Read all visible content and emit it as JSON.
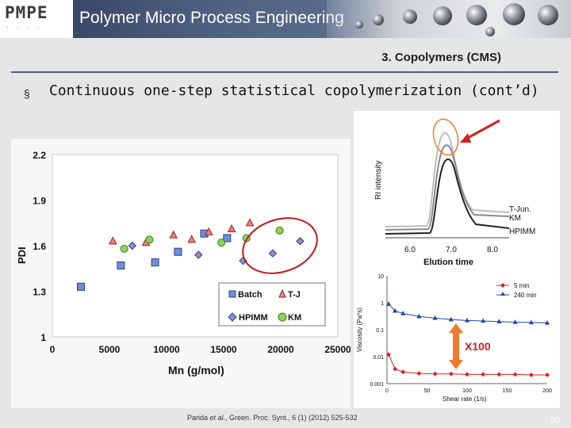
{
  "header": {
    "logo": "PMPE",
    "logo_sub": "· · · ·",
    "title": "Polymer Micro Process Engineering"
  },
  "section_title": "3. Copolymers (CMS)",
  "bullet": "§",
  "headline": "Continuous one-step statistical copolymerization (cont’d)",
  "main_plot": {
    "ylabel": "PDI",
    "xlabel": "Mn (g/mol)",
    "yticks": [
      "2.2",
      "1.9",
      "1.6",
      "1.3",
      "1"
    ],
    "xticks": [
      "0",
      "5000",
      "10000",
      "15000",
      "20000",
      "25000"
    ],
    "legend": [
      "Batch",
      "T-J",
      "HPIMM",
      "KM"
    ]
  },
  "chart_data": [
    {
      "type": "scatter",
      "title": "",
      "xlabel": "Mn (g/mol)",
      "ylabel": "PDI",
      "xlim": [
        0,
        25000
      ],
      "ylim": [
        1,
        2.2
      ],
      "series": [
        {
          "name": "Batch",
          "marker": "square",
          "color": "#6f8fd6",
          "points": [
            [
              2500,
              1.33
            ],
            [
              6000,
              1.47
            ],
            [
              9000,
              1.49
            ],
            [
              11000,
              1.56
            ],
            [
              13300,
              1.68
            ],
            [
              15300,
              1.65
            ]
          ]
        },
        {
          "name": "T-J",
          "marker": "triangle",
          "color": "#f08080",
          "points": [
            [
              5300,
              1.63
            ],
            [
              8200,
              1.62
            ],
            [
              10600,
              1.67
            ],
            [
              12200,
              1.64
            ],
            [
              13700,
              1.69
            ],
            [
              15700,
              1.71
            ],
            [
              17300,
              1.75
            ]
          ]
        },
        {
          "name": "HPIMM",
          "marker": "diamond",
          "color": "#8f8fd6",
          "points": [
            [
              7000,
              1.6
            ],
            [
              12800,
              1.54
            ],
            [
              16700,
              1.5
            ],
            [
              19300,
              1.55
            ],
            [
              21700,
              1.63
            ]
          ]
        },
        {
          "name": "KM",
          "marker": "circle",
          "color": "#8ed35a",
          "points": [
            [
              6300,
              1.58
            ],
            [
              8500,
              1.64
            ],
            [
              14800,
              1.62
            ],
            [
              17000,
              1.65
            ],
            [
              19900,
              1.7
            ]
          ]
        }
      ]
    },
    {
      "type": "line",
      "title": "",
      "xlabel": "Elution time",
      "ylabel": "RI intensity",
      "xticks": [
        "6.0",
        "7.0",
        "8.0"
      ],
      "series": [
        {
          "name": "T-Jun.",
          "color": "#bcbcbc"
        },
        {
          "name": "KM",
          "color": "#8a8a8a"
        },
        {
          "name": "HPIMM",
          "color": "#222222"
        }
      ]
    },
    {
      "type": "line",
      "title": "",
      "xlabel": "Shear rate (1/s)",
      "ylabel": "Viscosity (Pa*s)",
      "xlim": [
        0,
        200
      ],
      "yticks": [
        "10",
        "1",
        "0.1",
        "0.01",
        "0.001"
      ],
      "xticks": [
        "0",
        "50",
        "100",
        "150",
        "200"
      ],
      "series": [
        {
          "name": "5 min",
          "marker": "diamond",
          "color": "#d92020",
          "x": [
            2,
            10,
            20,
            40,
            60,
            80,
            100,
            120,
            140,
            160,
            180,
            200
          ],
          "y": [
            0.012,
            0.0035,
            0.0027,
            0.0024,
            0.0023,
            0.0023,
            0.0022,
            0.0022,
            0.0022,
            0.0022,
            0.0021,
            0.0021
          ]
        },
        {
          "name": "240 min",
          "marker": "triangle",
          "color": "#2048a8",
          "x": [
            2,
            10,
            20,
            40,
            60,
            80,
            100,
            120,
            140,
            160,
            180,
            200
          ],
          "y": [
            0.9,
            0.5,
            0.4,
            0.31,
            0.27,
            0.24,
            0.22,
            0.21,
            0.2,
            0.19,
            0.185,
            0.18
          ]
        }
      ],
      "annotations": [
        "X100"
      ]
    }
  ],
  "gpc_plot": {
    "ylabel": "RI intensity",
    "xlabel": "Elution time",
    "xticks": [
      "6.0",
      "7.0",
      "8.0"
    ],
    "labels": [
      "T-Jun.",
      "KM",
      "HPIMM"
    ]
  },
  "viscosity_plot": {
    "ylabel": "Viscosity (Pa*s)",
    "xlabel": "Shear rate (1/s)",
    "yticks": [
      "10",
      "1",
      "0.1",
      "0.01",
      "0.001"
    ],
    "xticks": [
      "0",
      "50",
      "100",
      "150",
      "200"
    ],
    "legend": [
      "5 min",
      "240 min"
    ],
    "annotation": "X100"
  },
  "citation": {
    "author": "Parida ",
    "etal": "et al",
    "rest": "., Green. Proc. Synt., 6 (1) (2012) 525-532"
  },
  "page_number": "20",
  "colors": {
    "banner": "#4a5b7c",
    "accent_red": "#d42020",
    "highlight_orange": "#f07a2a"
  }
}
